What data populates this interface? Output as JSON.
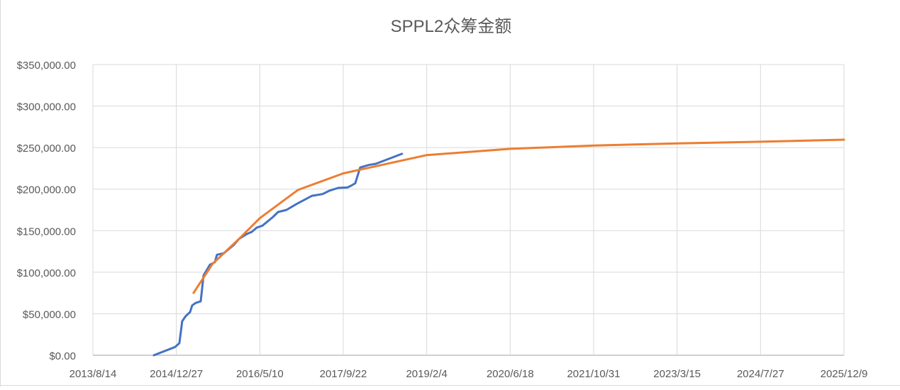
{
  "chart_data": {
    "type": "line",
    "title": "SPPL2众筹金额",
    "xlabel": "",
    "ylabel": "",
    "xlim": [
      "2013/8/14",
      "2025/12/9"
    ],
    "ylim": [
      0,
      350000
    ],
    "grid": true,
    "legend": "none",
    "x_tick_labels": [
      "2013/8/14",
      "2014/12/27",
      "2016/5/10",
      "2017/9/22",
      "2019/2/4",
      "2020/6/18",
      "2021/10/31",
      "2023/3/15",
      "2024/7/27",
      "2025/12/9"
    ],
    "y_tick_labels": [
      "$0.00",
      "$50,000.00",
      "$100,000.00",
      "$150,000.00",
      "$200,000.00",
      "$250,000.00",
      "$300,000.00",
      "$350,000.00"
    ],
    "y_ticks": [
      0,
      50000,
      100000,
      150000,
      200000,
      250000,
      300000,
      350000
    ],
    "series": [
      {
        "color": "#4472C4",
        "points": [
          [
            "2014-08-14",
            0
          ],
          [
            "2014-12-20",
            10000
          ],
          [
            "2015-01-14",
            14500
          ],
          [
            "2015-01-31",
            41000
          ],
          [
            "2015-02-21",
            47000
          ],
          [
            "2015-03-19",
            52000
          ],
          [
            "2015-04-01",
            60000
          ],
          [
            "2015-04-22",
            63000
          ],
          [
            "2015-05-22",
            65000
          ],
          [
            "2015-06-08",
            96000
          ],
          [
            "2015-07-16",
            109000
          ],
          [
            "2015-08-15",
            112000
          ],
          [
            "2015-08-27",
            121000
          ],
          [
            "2015-10-09",
            123000
          ],
          [
            "2015-12-07",
            133000
          ],
          [
            "2016-01-06",
            140000
          ],
          [
            "2016-02-22",
            146000
          ],
          [
            "2016-03-23",
            148500
          ],
          [
            "2016-04-21",
            153600
          ],
          [
            "2016-05-25",
            156000
          ],
          [
            "2016-07-28",
            166500
          ],
          [
            "2016-08-27",
            172400
          ],
          [
            "2016-10-17",
            175000
          ],
          [
            "2016-12-15",
            182000
          ],
          [
            "2017-03-19",
            192000
          ],
          [
            "2017-05-21",
            194000
          ],
          [
            "2017-06-29",
            198000
          ],
          [
            "2017-08-23",
            201500
          ],
          [
            "2017-10-17",
            202000
          ],
          [
            "2017-11-07",
            204000
          ],
          [
            "2017-12-03",
            207000
          ],
          [
            "2018-01-01",
            226000
          ],
          [
            "2018-02-21",
            229000
          ],
          [
            "2018-04-05",
            230500
          ],
          [
            "2018-09-09",
            242500
          ]
        ]
      },
      {
        "color": "#ED7D31",
        "trendline": true,
        "points": [
          [
            "2015-04-09",
            75000
          ],
          [
            "2015-08-01",
            110000
          ],
          [
            "2016-01-06",
            140000
          ],
          [
            "2016-05-10",
            165000
          ],
          [
            "2016-12-24",
            199000
          ],
          [
            "2017-09-22",
            219000
          ],
          [
            "2019-02-04",
            241000
          ],
          [
            "2020-06-18",
            248500
          ],
          [
            "2021-10-31",
            252500
          ],
          [
            "2023-03-15",
            255000
          ],
          [
            "2024-07-27",
            257000
          ],
          [
            "2025-12-09",
            259500
          ]
        ]
      }
    ]
  }
}
